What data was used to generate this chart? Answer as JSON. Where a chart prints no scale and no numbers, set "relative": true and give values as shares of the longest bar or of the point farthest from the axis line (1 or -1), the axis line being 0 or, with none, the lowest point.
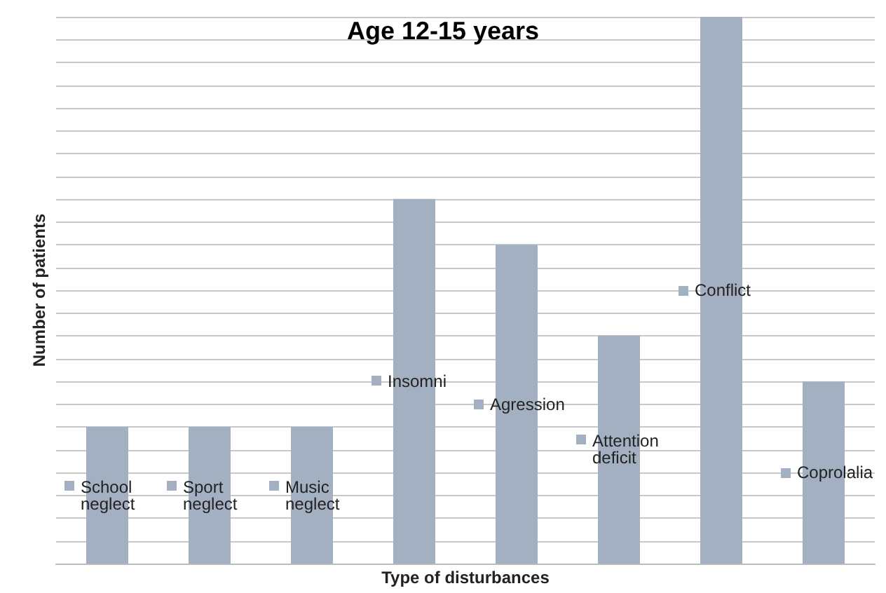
{
  "chart_data": {
    "type": "bar",
    "title": "Age 12-15 years",
    "xlabel": "Type of disturbances",
    "ylabel": "Number of patients",
    "categories": [
      "School neglect",
      "Sport neglect",
      "Music neglect",
      "Insomni",
      "Agression",
      "Attention deficit",
      "Conflict",
      "Coprolalia"
    ],
    "values": [
      0.25,
      0.25,
      0.25,
      0.667,
      0.583,
      0.417,
      1,
      0.333
    ],
    "color": "#a3b0c2",
    "relative": true,
    "grid": "y"
  }
}
